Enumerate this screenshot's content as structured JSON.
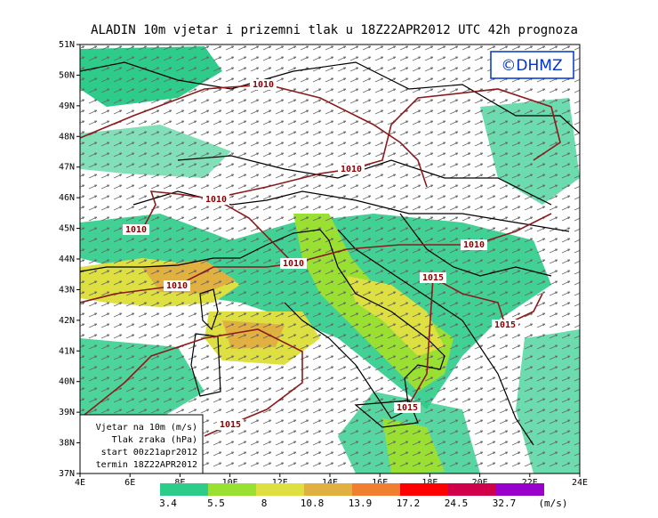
{
  "title": "ALADIN 10m vjetar i prizemni tlak u 18Z22APR2012 UTC 42h prognoza",
  "logo": "©DHMZ",
  "lat_labels": [
    "51N",
    "50N",
    "49N",
    "48N",
    "47N",
    "46N",
    "45N",
    "44N",
    "43N",
    "42N",
    "41N",
    "40N",
    "39N",
    "38N",
    "37N"
  ],
  "lon_labels": [
    "4E",
    "6E",
    "8E",
    "10E",
    "12E",
    "14E",
    "16E",
    "18E",
    "20E",
    "22E",
    "24E"
  ],
  "isobar_labels": [
    "1010",
    "1010",
    "1010",
    "1010",
    "1010",
    "1010",
    "1010",
    "1015",
    "1015",
    "1015",
    "1015"
  ],
  "info": [
    "Vjetar na 10m (m/s)",
    "Tlak zraka (hPa)",
    "start 00z21apr2012",
    "termin 18Z22APR2012"
  ],
  "scale": {
    "levels": [
      3.4,
      5.5,
      8,
      10.8,
      13.9,
      17.2,
      24.5,
      32.7
    ],
    "unit": "(m/s)",
    "colors": [
      "#2ecc8a",
      "#99e033",
      "#dde040",
      "#e0b040",
      "#f08030",
      "#ff0000",
      "#d0004a",
      "#9900cc"
    ]
  }
}
